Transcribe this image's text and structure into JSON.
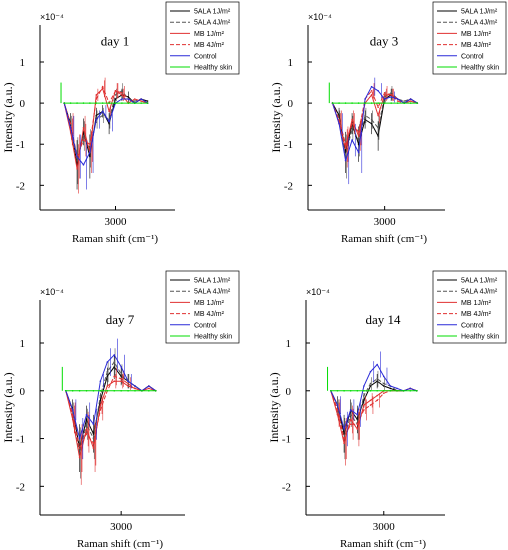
{
  "legend_entries": [
    {
      "label": "5ALA 1J/m²",
      "color": "#000000",
      "dash": "solid"
    },
    {
      "label": "5ALA 4J/m²",
      "color": "#555555",
      "dash": "dashed"
    },
    {
      "label": "MB 1J/m²",
      "color": "#e03030",
      "dash": "solid"
    },
    {
      "label": "MB 4J/m²",
      "color": "#e03030",
      "dash": "dashed"
    },
    {
      "label": "Control",
      "color": "#2a2ad8",
      "dash": "solid"
    },
    {
      "label": "Healthy skin",
      "color": "#00dd00",
      "dash": "solid"
    }
  ],
  "chart_data": [
    {
      "type": "line",
      "title": "day 1",
      "xlabel": "Raman shift (cm⁻¹)",
      "ylabel": "Intensity (a.u.)",
      "exponent_label": "×10⁻⁴",
      "xticks": [
        3000
      ],
      "yticks": [
        1,
        0,
        -1,
        -2
      ],
      "xlim": [
        2780,
        3170
      ],
      "ylim": [
        -2.6,
        1.9
      ],
      "x": [
        2840,
        2860,
        2880,
        2900,
        2920,
        2940,
        2960,
        2980,
        3000,
        3020,
        3040,
        3060,
        3080,
        3100
      ],
      "series": [
        {
          "name": "5ALA 1J/m²",
          "values": [
            0,
            -0.5,
            -1.5,
            -0.7,
            -1.3,
            -0.3,
            -0.2,
            -0.5,
            0.1,
            0.2,
            0.15,
            0,
            0.1,
            0.05
          ]
        },
        {
          "name": "5ALA 4J/m²",
          "values": [
            0,
            -0.6,
            -1.4,
            -0.8,
            -1.1,
            -0.4,
            -0.3,
            -0.4,
            0.2,
            0.3,
            0.1,
            0.05,
            0.1,
            0
          ]
        },
        {
          "name": "MB 1J/m²",
          "values": [
            0,
            -0.7,
            -1.6,
            -0.6,
            -1.2,
            0.2,
            0.35,
            -0.2,
            0.3,
            0.2,
            0,
            0.1,
            0.05,
            0
          ]
        },
        {
          "name": "MB 4J/m²",
          "values": [
            0,
            -0.5,
            -1.3,
            -0.9,
            -1.0,
            0.1,
            0.4,
            0,
            0.3,
            0.25,
            0.1,
            0,
            0.1,
            0
          ]
        },
        {
          "name": "Control",
          "values": [
            0,
            -0.6,
            -1.3,
            -1.5,
            -1.2,
            -0.4,
            -0.2,
            -0.45,
            0,
            0.1,
            0.1,
            0,
            0.1,
            0
          ]
        },
        {
          "name": "Healthy skin",
          "values": [
            0,
            0,
            0,
            0,
            0,
            0,
            0,
            0,
            0,
            0,
            0,
            0,
            0,
            0
          ]
        }
      ]
    },
    {
      "type": "line",
      "title": "day 3",
      "xlabel": "Raman shift (cm⁻¹)",
      "ylabel": "Intensity (a.u.)",
      "exponent_label": "×10⁻⁴",
      "xticks": [
        3000
      ],
      "yticks": [
        1,
        0,
        -1,
        -2
      ],
      "xlim": [
        2780,
        3170
      ],
      "ylim": [
        -2.6,
        1.9
      ],
      "x": [
        2840,
        2860,
        2880,
        2900,
        2920,
        2940,
        2960,
        2980,
        3000,
        3020,
        3040,
        3060,
        3080,
        3100
      ],
      "series": [
        {
          "name": "5ALA 1J/m²",
          "values": [
            0,
            -0.3,
            -1.2,
            -0.5,
            -1.0,
            -0.4,
            -0.5,
            -0.8,
            0.1,
            0.2,
            0.1,
            0,
            0.1,
            0
          ]
        },
        {
          "name": "5ALA 4J/m²",
          "values": [
            0,
            -0.4,
            -1.3,
            -0.6,
            -0.9,
            -0.3,
            -0.4,
            -0.6,
            0.15,
            0.25,
            0.1,
            0.05,
            0.1,
            0
          ]
        },
        {
          "name": "MB 1J/m²",
          "values": [
            0,
            -0.5,
            -1.1,
            -0.4,
            -0.8,
            0,
            0.2,
            -0.3,
            0.2,
            0.2,
            0.1,
            0,
            0.05,
            0
          ]
        },
        {
          "name": "MB 4J/m²",
          "values": [
            0,
            -0.4,
            -1.0,
            -0.5,
            -0.7,
            0.1,
            0.3,
            -0.1,
            0.25,
            0.2,
            0.05,
            0,
            0.1,
            0
          ]
        },
        {
          "name": "Control",
          "values": [
            0,
            -0.5,
            -1.4,
            -0.9,
            -1.2,
            0.1,
            0.4,
            0.3,
            0.1,
            0.15,
            0.1,
            0,
            0.1,
            0
          ]
        },
        {
          "name": "Healthy skin",
          "values": [
            0,
            0,
            0,
            0,
            0,
            0,
            0,
            0,
            0,
            0,
            0,
            0,
            0,
            0
          ]
        }
      ]
    },
    {
      "type": "line",
      "title": "day 7",
      "xlabel": "Raman shift (cm⁻¹)",
      "ylabel": "Intensity (a.u.)",
      "exponent_label": "×10⁻⁴",
      "xticks": [
        3000
      ],
      "yticks": [
        1,
        0,
        -1,
        -2
      ],
      "xlim": [
        2780,
        3170
      ],
      "ylim": [
        -2.6,
        1.9
      ],
      "x": [
        2840,
        2860,
        2880,
        2900,
        2920,
        2940,
        2960,
        2980,
        3000,
        3020,
        3040,
        3060,
        3080,
        3100
      ],
      "series": [
        {
          "name": "5ALA 1J/m²",
          "values": [
            0,
            -0.4,
            -1.2,
            -0.6,
            -0.9,
            -0.2,
            0.3,
            0.5,
            0.3,
            0.2,
            0.1,
            0,
            0.1,
            0
          ]
        },
        {
          "name": "5ALA 4J/m²",
          "values": [
            0,
            -0.5,
            -1.3,
            -0.7,
            -1.0,
            -0.1,
            0.4,
            0.6,
            0.35,
            0.2,
            0.1,
            0,
            0.1,
            0
          ]
        },
        {
          "name": "MB 1J/m²",
          "values": [
            0,
            -0.6,
            -1.4,
            -0.8,
            -1.2,
            -0.3,
            0.1,
            0.2,
            0.2,
            0.1,
            0.05,
            0,
            0.05,
            0
          ]
        },
        {
          "name": "MB 4J/m²",
          "values": [
            0,
            -0.5,
            -1.2,
            -0.9,
            -1.1,
            -0.4,
            0.0,
            0.3,
            0.25,
            0.15,
            0.05,
            0,
            0.1,
            0
          ]
        },
        {
          "name": "Control",
          "values": [
            0,
            -0.4,
            -1.0,
            -0.5,
            -0.7,
            0.2,
            0.6,
            0.75,
            0.5,
            0.2,
            0.1,
            0,
            0.1,
            0
          ]
        },
        {
          "name": "Healthy skin",
          "values": [
            0,
            0,
            0,
            0,
            0,
            0,
            0,
            0,
            0,
            0,
            0,
            0,
            0,
            0
          ]
        }
      ]
    },
    {
      "type": "line",
      "title": "day 14",
      "xlabel": "Raman shift (cm⁻¹)",
      "ylabel": "Intensity (a.u.)",
      "exponent_label": "×10⁻⁴",
      "xticks": [
        3000
      ],
      "yticks": [
        1,
        0,
        -1,
        -2
      ],
      "xlim": [
        2780,
        3170
      ],
      "ylim": [
        -2.6,
        1.9
      ],
      "x": [
        2840,
        2860,
        2880,
        2900,
        2920,
        2940,
        2960,
        2980,
        3000,
        3020,
        3040,
        3060,
        3080,
        3100
      ],
      "series": [
        {
          "name": "5ALA 1J/m²",
          "values": [
            0,
            -0.3,
            -0.9,
            -0.4,
            -0.6,
            -0.2,
            0.1,
            0.2,
            0.1,
            0.05,
            0,
            0,
            0.05,
            0
          ]
        },
        {
          "name": "5ALA 4J/m²",
          "values": [
            0,
            -0.4,
            -1.0,
            -0.5,
            -0.7,
            -0.1,
            0.15,
            0.25,
            0.15,
            0.1,
            0,
            0,
            0.05,
            0
          ]
        },
        {
          "name": "MB 1J/m²",
          "values": [
            0,
            -0.5,
            -1.1,
            -0.6,
            -0.8,
            -0.3,
            -0.2,
            -0.1,
            0,
            0,
            0,
            0,
            0.05,
            0
          ]
        },
        {
          "name": "MB 4J/m²",
          "values": [
            0,
            -0.4,
            -1.0,
            -0.7,
            -0.7,
            -0.4,
            -0.3,
            -0.2,
            -0.05,
            0,
            0,
            0,
            0.05,
            0
          ]
        },
        {
          "name": "Control",
          "values": [
            0,
            -0.3,
            -0.8,
            -0.4,
            -0.5,
            0.1,
            0.4,
            0.55,
            0.3,
            0.1,
            0.05,
            0,
            0.05,
            0
          ]
        },
        {
          "name": "Healthy skin",
          "values": [
            0,
            0,
            0,
            0,
            0,
            0,
            0,
            0,
            0,
            0,
            0,
            0,
            0,
            0
          ]
        }
      ]
    }
  ]
}
